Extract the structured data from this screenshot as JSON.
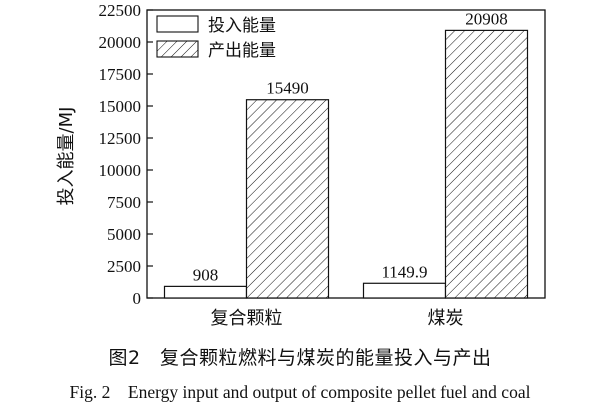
{
  "chart_data": {
    "type": "bar",
    "categories": [
      "复合颗粒",
      "煤炭"
    ],
    "series": [
      {
        "name": "投入能量",
        "values": [
          908,
          1149.9
        ],
        "value_labels": [
          "908",
          "1149.9"
        ],
        "fill": "plain"
      },
      {
        "name": "产出能量",
        "values": [
          15490,
          20908
        ],
        "value_labels": [
          "15490",
          "20908"
        ],
        "fill": "hatched"
      }
    ],
    "ylabel": "投入能量/MJ",
    "xlabel": "",
    "ylim": [
      0,
      22500
    ],
    "yticks": [
      0,
      2500,
      5000,
      7500,
      10000,
      12500,
      15000,
      17500,
      20000,
      22500
    ],
    "grid": false,
    "legend": "top-left"
  },
  "caption": {
    "cn": "图2　复合颗粒燃料与煤炭的能量投入与产出",
    "en": "Fig. 2　Energy input and output of composite pellet fuel and coal"
  },
  "colors": {
    "axis": "#111111",
    "bar_fill": "#ffffff",
    "hatch": "#111111"
  }
}
